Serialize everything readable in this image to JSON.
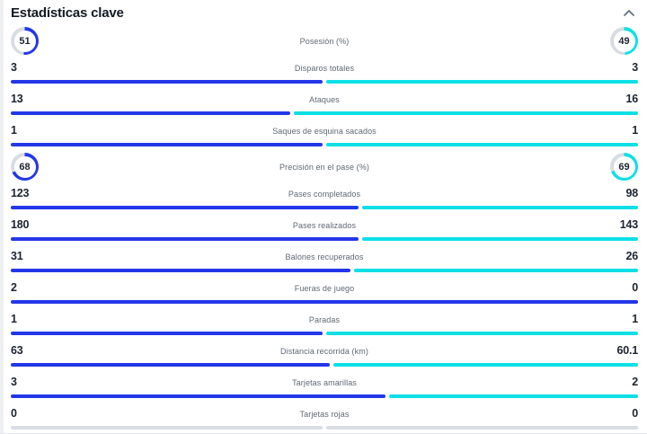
{
  "header": {
    "title": "Estadísticas clave",
    "collapse_icon": "chevron-up"
  },
  "colors": {
    "home": "#2337e8",
    "away": "#0ce0e6",
    "track": "#d8dde3",
    "value_text": "#1c2430",
    "label_text": "#5f6873"
  },
  "stats": [
    {
      "type": "gauge",
      "label": "Posesión (%)",
      "home": 51,
      "away": 49
    },
    {
      "type": "bar",
      "label": "Disparos totales",
      "home": 3,
      "away": 3
    },
    {
      "type": "bar",
      "label": "Ataques",
      "home": 13,
      "away": 16
    },
    {
      "type": "bar",
      "label": "Saques de esquina sacados",
      "home": 1,
      "away": 1
    },
    {
      "type": "gauge",
      "label": "Precisión en el pase (%)",
      "home": 68,
      "away": 69
    },
    {
      "type": "bar",
      "label": "Pases completados",
      "home": 123,
      "away": 98
    },
    {
      "type": "bar",
      "label": "Pases realizados",
      "home": 180,
      "away": 143
    },
    {
      "type": "bar",
      "label": "Balones recuperados",
      "home": 31,
      "away": 26
    },
    {
      "type": "bar",
      "label": "Fueras de juego",
      "home": 2,
      "away": 0
    },
    {
      "type": "bar",
      "label": "Paradas",
      "home": 1,
      "away": 1
    },
    {
      "type": "bar",
      "label": "Distancia recorrida (km)",
      "home": 63,
      "away": 60.1
    },
    {
      "type": "bar",
      "label": "Tarjetas amarillas",
      "home": 3,
      "away": 2
    },
    {
      "type": "bar",
      "label": "Tarjetas rojas",
      "home": 0,
      "away": 0
    }
  ]
}
